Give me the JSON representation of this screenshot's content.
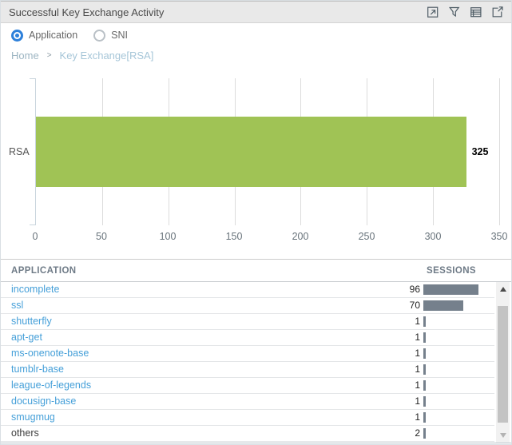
{
  "widget": {
    "title": "Successful Key Exchange Activity",
    "toolbar": [
      {
        "name": "popout-icon"
      },
      {
        "name": "filter-icon"
      },
      {
        "name": "table-view-icon"
      },
      {
        "name": "export-icon"
      }
    ]
  },
  "controls": {
    "radios": [
      {
        "label": "Application",
        "selected": true
      },
      {
        "label": "SNI",
        "selected": false
      }
    ]
  },
  "breadcrumb": {
    "items": [
      "Home",
      "Key Exchange[RSA]"
    ],
    "separator": ">"
  },
  "chart_data": {
    "type": "bar",
    "orientation": "horizontal",
    "title": "",
    "xlabel": "",
    "ylabel": "",
    "categories": [
      "RSA"
    ],
    "values": [
      325
    ],
    "value_labels": [
      "325"
    ],
    "xlim": [
      0,
      350
    ],
    "xticks": [
      0,
      50,
      100,
      150,
      200,
      250,
      300,
      350
    ],
    "grid": true,
    "bar_color": "#a0c355"
  },
  "table": {
    "columns": [
      "APPLICATION",
      "SESSIONS"
    ],
    "rows": [
      {
        "application": "incomplete",
        "sessions": 96,
        "link": true
      },
      {
        "application": "ssl",
        "sessions": 70,
        "link": true
      },
      {
        "application": "shutterfly",
        "sessions": 1,
        "link": true
      },
      {
        "application": "apt-get",
        "sessions": 1,
        "link": true
      },
      {
        "application": "ms-onenote-base",
        "sessions": 1,
        "link": true
      },
      {
        "application": "tumblr-base",
        "sessions": 1,
        "link": true
      },
      {
        "application": "league-of-legends",
        "sessions": 1,
        "link": true
      },
      {
        "application": "docusign-base",
        "sessions": 1,
        "link": true
      },
      {
        "application": "smugmug",
        "sessions": 1,
        "link": true
      },
      {
        "application": "others",
        "sessions": 2,
        "link": false
      }
    ],
    "session_bar_color": "#75808c"
  },
  "colors": {
    "accent_blue": "#2d80da",
    "link_blue": "#46a0d9",
    "chart_bar_green": "#a0c355",
    "session_bar_slate": "#75808c",
    "titlebar_bg": "#e9e9e9"
  }
}
